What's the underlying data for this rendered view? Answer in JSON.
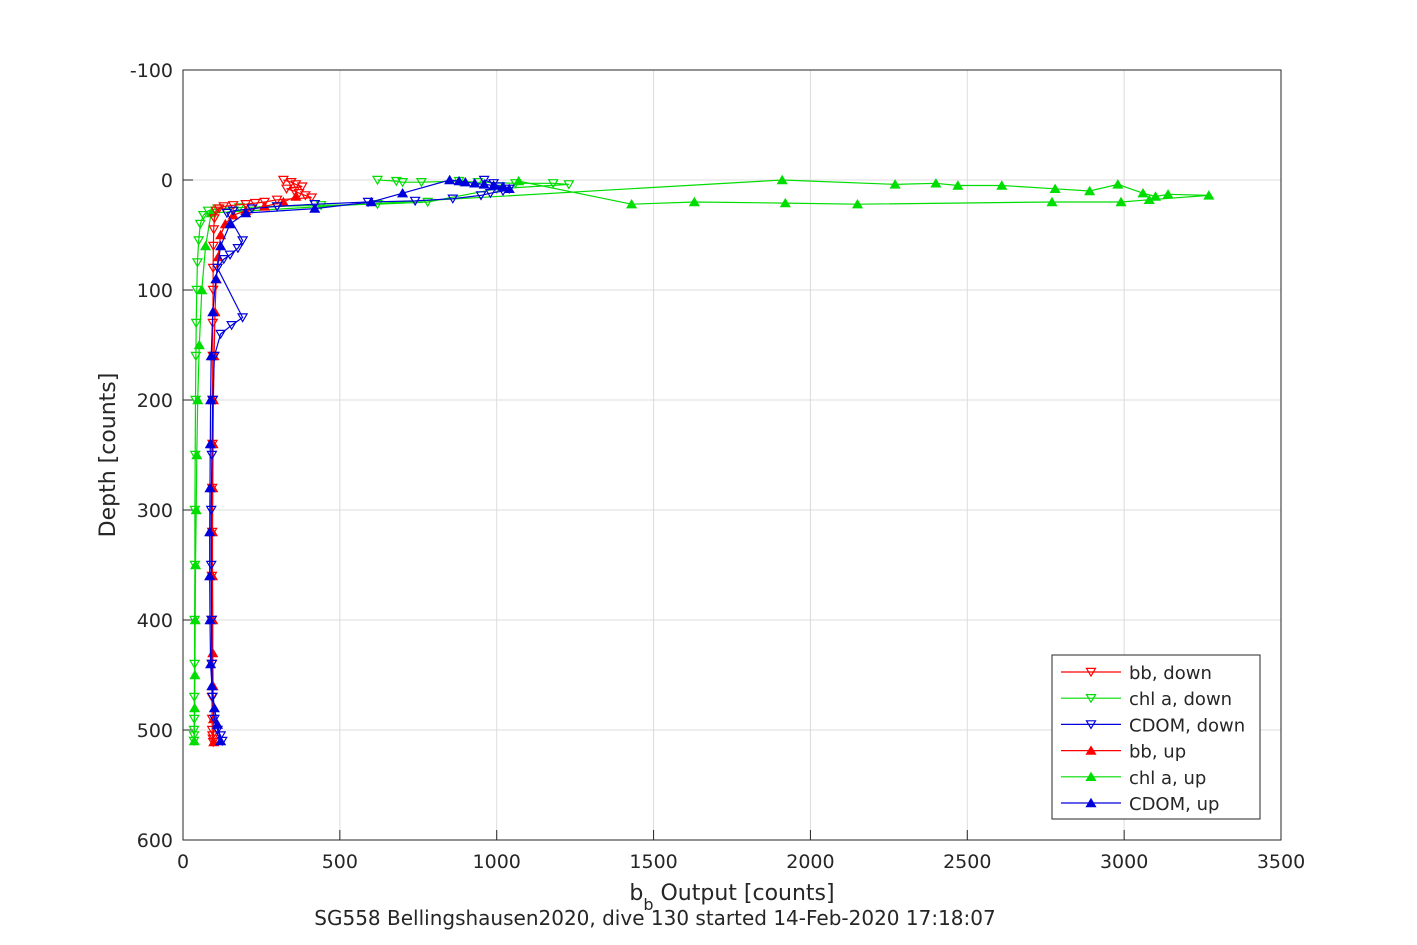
{
  "chart_data": {
    "type": "line",
    "xlabel_base": "b",
    "xlabel_sub": "b",
    "xlabel_rest": " Output [counts]",
    "ylabel": "Depth [counts]",
    "caption": "SG558 Bellingshausen2020, dive 130 started 14-Feb-2020 17:18:07",
    "xlim": [
      0,
      3500
    ],
    "ylim": [
      -100,
      600
    ],
    "y_reversed": true,
    "xticks": [
      "0",
      "500",
      "1000",
      "1500",
      "2000",
      "2500",
      "3000",
      "3500"
    ],
    "yticks": [
      "-100",
      "0",
      "100",
      "200",
      "300",
      "400",
      "500",
      "600"
    ],
    "grid": true,
    "legend_position": "bottom-right",
    "series": [
      {
        "name": "bb, down",
        "color": "#ff0000",
        "marker": "triangle-down",
        "x": [
          320,
          345,
          360,
          380,
          330,
          355,
          370,
          390,
          410,
          300,
          260,
          230,
          200,
          160,
          130,
          115,
          105,
          100,
          98,
          97,
          96,
          96,
          95,
          95,
          94,
          94,
          93,
          93,
          92,
          92,
          92,
          92,
          93,
          93,
          94,
          95,
          96
        ],
        "y": [
          0,
          2,
          4,
          6,
          8,
          10,
          12,
          14,
          16,
          18,
          20,
          21,
          22,
          23,
          24,
          26,
          28,
          35,
          45,
          60,
          80,
          100,
          130,
          160,
          200,
          240,
          280,
          320,
          360,
          400,
          440,
          470,
          490,
          500,
          505,
          508,
          511
        ]
      },
      {
        "name": "chl a, down",
        "color": "#00dd00",
        "marker": "triangle-down",
        "x": [
          620,
          680,
          700,
          760,
          880,
          940,
          1060,
          1180,
          1230,
          1000,
          780,
          620,
          440,
          300,
          180,
          110,
          80,
          65,
          55,
          50,
          46,
          44,
          42,
          41,
          40,
          39,
          38,
          38,
          37,
          37,
          36,
          36,
          35,
          35,
          35
        ],
        "y": [
          0,
          1,
          2,
          2,
          1,
          2,
          3,
          3,
          4,
          8,
          20,
          22,
          23,
          24,
          25,
          26,
          28,
          32,
          40,
          55,
          75,
          100,
          130,
          160,
          200,
          250,
          300,
          350,
          400,
          440,
          470,
          490,
          500,
          505,
          510
        ]
      },
      {
        "name": "CDOM, down",
        "color": "#0000dd",
        "marker": "triangle-down",
        "x": [
          960,
          990,
          1010,
          1040,
          1020,
          980,
          950,
          860,
          740,
          590,
          420,
          300,
          220,
          160,
          140,
          190,
          175,
          150,
          130,
          110,
          190,
          155,
          120,
          100,
          95,
          92,
          90,
          90,
          91,
          92,
          94,
          100,
          110,
          120,
          125
        ],
        "y": [
          0,
          3,
          6,
          8,
          10,
          12,
          14,
          17,
          19,
          20,
          22,
          24,
          26,
          28,
          30,
          55,
          62,
          68,
          72,
          80,
          125,
          132,
          140,
          160,
          200,
          250,
          300,
          350,
          400,
          440,
          470,
          490,
          500,
          505,
          510
        ]
      },
      {
        "name": "bb, up",
        "color": "#ff0000",
        "marker": "triangle-up",
        "x": [
          98,
          97,
          96,
          95,
          95,
          94,
          94,
          95,
          96,
          97,
          99,
          102,
          106,
          112,
          120,
          135,
          160,
          200,
          260,
          320,
          360
        ],
        "y": [
          511,
          490,
          460,
          430,
          400,
          360,
          320,
          280,
          240,
          200,
          160,
          120,
          90,
          70,
          50,
          40,
          32,
          28,
          24,
          20,
          15
        ]
      },
      {
        "name": "chl a, up",
        "color": "#00dd00",
        "marker": "triangle-up",
        "x": [
          36,
          37,
          38,
          39,
          40,
          42,
          44,
          47,
          52,
          60,
          72,
          90,
          1910,
          2270,
          2400,
          2470,
          2610,
          2780,
          2890,
          2980,
          3060,
          3100,
          3140,
          3270,
          3080,
          2990,
          2770,
          2150,
          1920,
          1630,
          1430,
          1070
        ],
        "y": [
          510,
          480,
          450,
          400,
          350,
          300,
          250,
          200,
          150,
          100,
          60,
          30,
          0,
          4,
          3,
          5,
          5,
          8,
          10,
          4,
          12,
          15,
          13,
          14,
          18,
          20,
          20,
          22,
          21,
          20,
          22,
          1
        ],
        "_note_omit": false
      },
      {
        "name": "CDOM, up",
        "color": "#0000dd",
        "marker": "triangle-up",
        "x": [
          120,
          110,
          100,
          92,
          88,
          86,
          85,
          85,
          86,
          87,
          88,
          90,
          95,
          105,
          120,
          150,
          200,
          420,
          600,
          700,
          850,
          880,
          900,
          930,
          960,
          990,
          1020,
          1040
        ],
        "y": [
          510,
          495,
          480,
          460,
          440,
          400,
          360,
          320,
          280,
          240,
          200,
          160,
          120,
          90,
          60,
          40,
          30,
          26,
          20,
          12,
          0,
          1,
          2,
          3,
          4,
          5,
          6,
          8
        ]
      }
    ]
  }
}
